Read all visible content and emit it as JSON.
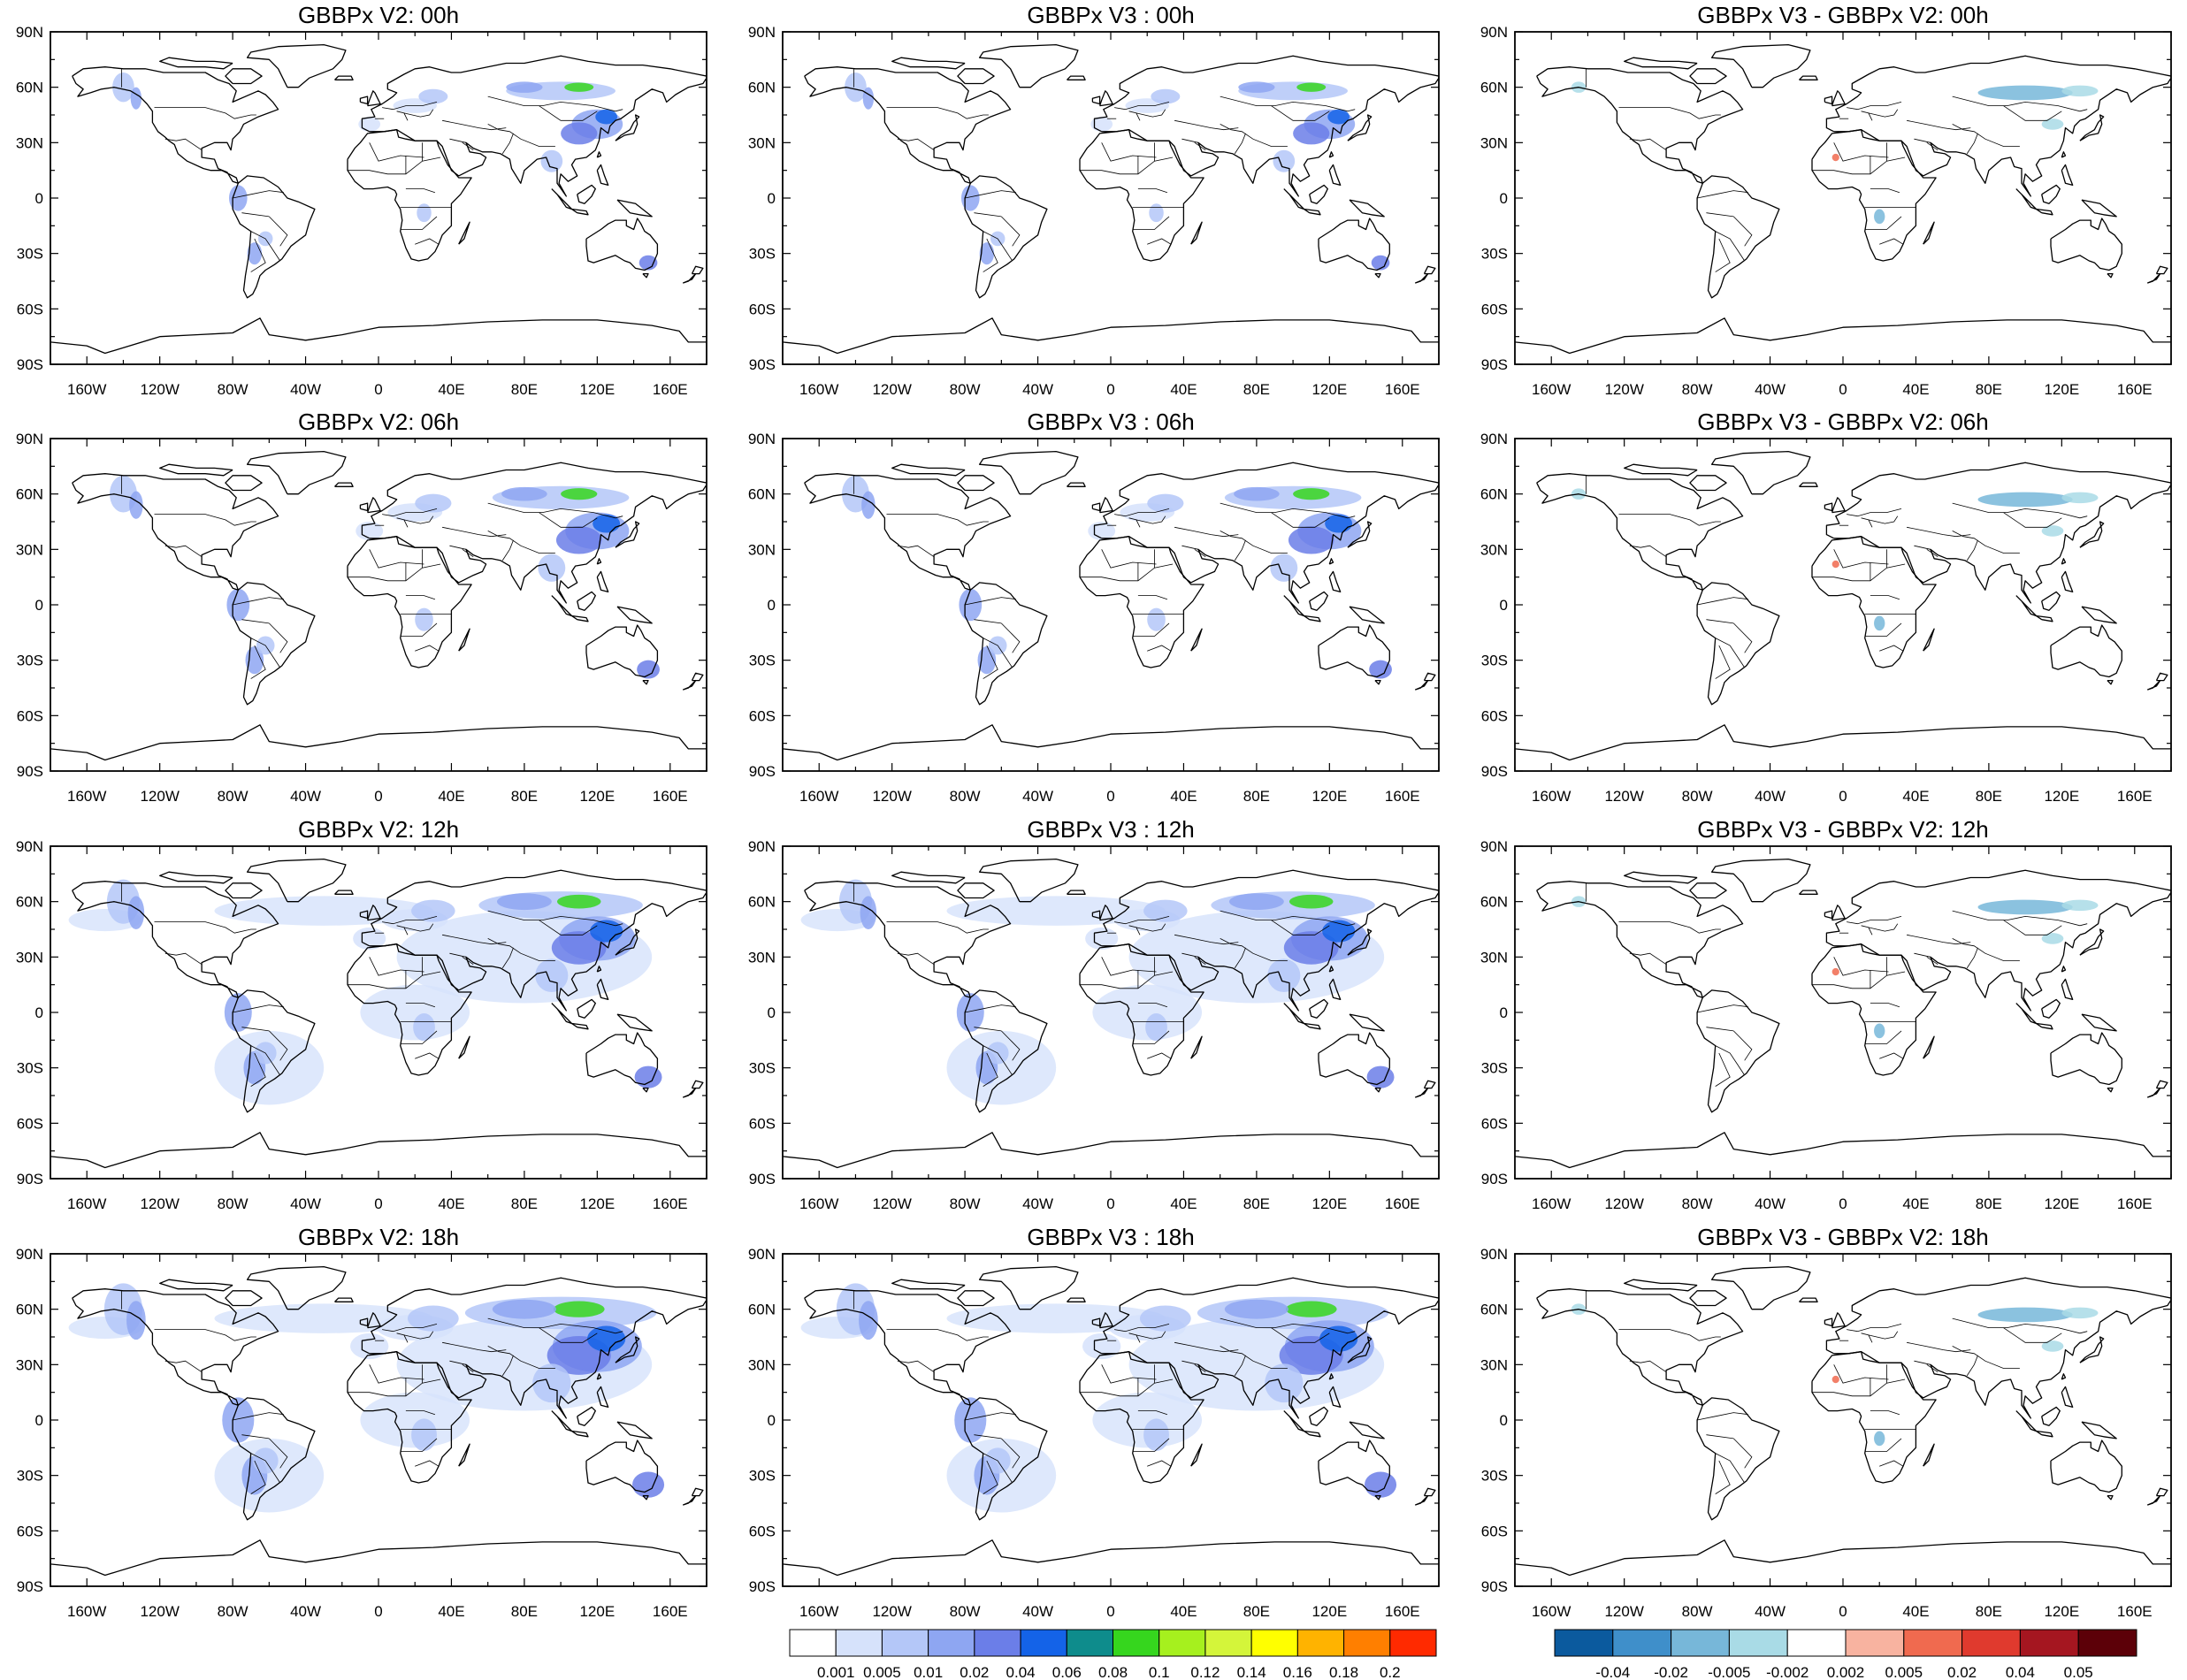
{
  "panel_titles": [
    [
      "GBBPx V2: 00h",
      "GBBPx V3 : 00h",
      "GBBPx V3 - GBBPx V2: 00h"
    ],
    [
      "GBBPx V2: 06h",
      "GBBPx V3 : 06h",
      "GBBPx V3 - GBBPx V2: 06h"
    ],
    [
      "GBBPx V2: 12h",
      "GBBPx V3 : 12h",
      "GBBPx V3 - GBBPx V2: 12h"
    ],
    [
      "GBBPx V2: 18h",
      "GBBPx V3 : 18h",
      "GBBPx V3 - GBBPx V2: 18h"
    ]
  ],
  "lat_ticks": [
    "90N",
    "60N",
    "30N",
    "0",
    "30S",
    "60S",
    "90S"
  ],
  "lon_ticks": [
    "160W",
    "120W",
    "80W",
    "40W",
    "0",
    "40E",
    "80E",
    "120E",
    "160E"
  ],
  "colorbar_main": {
    "colors": [
      "#ffffff",
      "#d6e2fb",
      "#b4c7f8",
      "#8ea6f2",
      "#6b7ee8",
      "#1463e8",
      "#0e8c8c",
      "#36d61e",
      "#a6f01e",
      "#d4f53a",
      "#ffff00",
      "#ffb300",
      "#ff7f00",
      "#ff2a00"
    ],
    "labels": [
      "0.001",
      "0.005",
      "0.01",
      "0.02",
      "0.04",
      "0.06",
      "0.08",
      "0.1",
      "0.12",
      "0.14",
      "0.16",
      "0.18",
      "0.2"
    ]
  },
  "colorbar_diff": {
    "colors": [
      "#0b5a9e",
      "#3f8fca",
      "#77b7d9",
      "#a9dbe6",
      "#ffffff",
      "#f8b3a0",
      "#f06a4f",
      "#e03a2e",
      "#a51620",
      "#5c0008"
    ],
    "labels": [
      "-0.04",
      "-0.02",
      "-0.005",
      "-0.002",
      "0.002",
      "0.005",
      "0.02",
      "0.04",
      "0.05"
    ]
  }
}
